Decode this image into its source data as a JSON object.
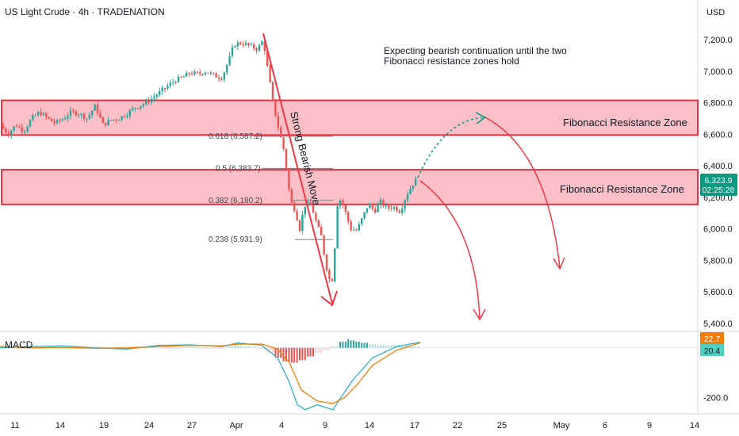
{
  "header": {
    "title": "US Light Crude · 4h · TRADENATION"
  },
  "currency": "USD",
  "price_badge": {
    "price": "6,323.9",
    "countdown": "02:25:28",
    "color": "#089981"
  },
  "macd_badges": [
    {
      "value": "22.7",
      "color": "#f57c00"
    },
    {
      "value": "20.4",
      "color": "#4dd0c0"
    }
  ],
  "macd_label": "MACD",
  "annotations": {
    "note_line1": "Expecting bearish continuation until the two",
    "note_line2": "Fibonacci resistance zones hold",
    "move_label": "Strong Bearish Move",
    "zone_upper_label": "Fibonacci Resistance Zone",
    "zone_lower_label": "Fibonacci Resistance Zone"
  },
  "colors": {
    "up": "#26a69a",
    "down": "#ef5350",
    "zone_fill": "#f9b4bd",
    "zone_border": "#e8323f",
    "arrow": "#f23645",
    "dotted": "#089981",
    "macd": "#2ab3c9",
    "signal": "#f57c00"
  },
  "chart_data": {
    "type": "candlestick",
    "price_axis": {
      "range": [
        5300,
        7500
      ],
      "ticks": [
        "7,200.0",
        "7,000.0",
        "6,800.0",
        "6,600.0",
        "6,400.0",
        "6,200.0",
        "6,000.0",
        "5,800.0",
        "5,600.0",
        "5,400.0"
      ],
      "tick_values": [
        7200,
        7000,
        6800,
        6600,
        6400,
        6200,
        6000,
        5800,
        5600,
        5400
      ]
    },
    "time_axis": {
      "ticks": [
        "11",
        "14",
        "19",
        "24",
        "27",
        "Apr",
        "4",
        "9",
        "14",
        "17",
        "22",
        "25",
        "May",
        "6",
        "9",
        "14"
      ]
    },
    "macd_axis": {
      "ticks": [
        "-200.0"
      ],
      "tick_values": [
        -200
      ],
      "range": [
        -260,
        60
      ]
    },
    "fibonacci": [
      {
        "label": "0.618 (6,587.2)",
        "value": 6587.2
      },
      {
        "label": "0.5 (6,383.7)",
        "value": 6383.7
      },
      {
        "label": "0.382 (6,180.2)",
        "value": 6180.2
      },
      {
        "label": "0.238 (5,931.9)",
        "value": 5931.9
      }
    ],
    "zones": [
      {
        "name": "Fibonacci Resistance Zone",
        "low": 6595,
        "high": 6815
      },
      {
        "name": "Fibonacci Resistance Zone",
        "low": 6155,
        "high": 6375
      }
    ],
    "last_price": 6323.9,
    "close_path": [
      [
        0,
        6660
      ],
      [
        10,
        6600
      ],
      [
        20,
        6660
      ],
      [
        30,
        6620
      ],
      [
        40,
        6700
      ],
      [
        50,
        6740
      ],
      [
        60,
        6700
      ],
      [
        70,
        6670
      ],
      [
        80,
        6700
      ],
      [
        90,
        6740
      ],
      [
        100,
        6730
      ],
      [
        110,
        6700
      ],
      [
        120,
        6780
      ],
      [
        130,
        6660
      ],
      [
        140,
        6690
      ],
      [
        150,
        6700
      ],
      [
        160,
        6730
      ],
      [
        170,
        6770
      ],
      [
        180,
        6790
      ],
      [
        190,
        6820
      ],
      [
        200,
        6860
      ],
      [
        210,
        6900
      ],
      [
        220,
        6940
      ],
      [
        230,
        6960
      ],
      [
        240,
        6990
      ],
      [
        250,
        6980
      ],
      [
        260,
        7000
      ],
      [
        270,
        6970
      ],
      [
        280,
        6960
      ],
      [
        290,
        7090
      ],
      [
        295,
        7170
      ],
      [
        305,
        7180
      ],
      [
        315,
        7160
      ],
      [
        325,
        7140
      ],
      [
        332,
        7200
      ],
      [
        338,
        7000
      ],
      [
        345,
        6780
      ],
      [
        352,
        6620
      ],
      [
        358,
        6500
      ],
      [
        362,
        6350
      ],
      [
        366,
        6180
      ],
      [
        372,
        6120
      ],
      [
        378,
        6000
      ],
      [
        384,
        6150
      ],
      [
        392,
        6160
      ],
      [
        400,
        6020
      ],
      [
        405,
        5960
      ],
      [
        410,
        5800
      ],
      [
        415,
        5680
      ],
      [
        420,
        5680
      ],
      [
        425,
        6150
      ],
      [
        430,
        6190
      ],
      [
        436,
        6100
      ],
      [
        442,
        6000
      ],
      [
        450,
        5990
      ],
      [
        458,
        6080
      ],
      [
        465,
        6160
      ],
      [
        472,
        6110
      ],
      [
        480,
        6170
      ],
      [
        488,
        6130
      ],
      [
        496,
        6140
      ],
      [
        505,
        6110
      ],
      [
        512,
        6210
      ],
      [
        520,
        6280
      ],
      [
        527,
        6324
      ]
    ],
    "macd_series": [
      {
        "name": "MACD",
        "points": [
          [
            0,
            0
          ],
          [
            40,
            5
          ],
          [
            80,
            8
          ],
          [
            120,
            0
          ],
          [
            160,
            -5
          ],
          [
            200,
            10
          ],
          [
            240,
            12
          ],
          [
            280,
            5
          ],
          [
            300,
            20
          ],
          [
            330,
            10
          ],
          [
            350,
            -40
          ],
          [
            365,
            -140
          ],
          [
            375,
            -230
          ],
          [
            385,
            -250
          ],
          [
            400,
            -230
          ],
          [
            420,
            -250
          ],
          [
            430,
            -200
          ],
          [
            445,
            -130
          ],
          [
            470,
            -40
          ],
          [
            500,
            5
          ],
          [
            530,
            22.7
          ]
        ]
      },
      {
        "name": "Signal",
        "points": [
          [
            0,
            5
          ],
          [
            40,
            0
          ],
          [
            80,
            2
          ],
          [
            120,
            -2
          ],
          [
            160,
            0
          ],
          [
            200,
            5
          ],
          [
            240,
            10
          ],
          [
            280,
            8
          ],
          [
            300,
            15
          ],
          [
            330,
            15
          ],
          [
            350,
            -5
          ],
          [
            365,
            -60
          ],
          [
            380,
            -170
          ],
          [
            400,
            -215
          ],
          [
            420,
            -225
          ],
          [
            435,
            -200
          ],
          [
            450,
            -150
          ],
          [
            470,
            -70
          ],
          [
            500,
            -10
          ],
          [
            530,
            20.4
          ]
        ]
      }
    ],
    "macd_hist": [
      [
        290,
        8
      ],
      [
        300,
        10
      ],
      [
        310,
        6
      ],
      [
        320,
        3
      ],
      [
        330,
        -5
      ],
      [
        340,
        -20
      ],
      [
        350,
        -40
      ],
      [
        360,
        -55
      ],
      [
        370,
        -60
      ],
      [
        380,
        -50
      ],
      [
        390,
        -35
      ],
      [
        400,
        -20
      ],
      [
        410,
        -10
      ],
      [
        420,
        5
      ],
      [
        430,
        25
      ],
      [
        435,
        35
      ],
      [
        440,
        30
      ],
      [
        450,
        25
      ],
      [
        460,
        20
      ],
      [
        470,
        15
      ],
      [
        480,
        12
      ],
      [
        490,
        10
      ],
      [
        500,
        12
      ],
      [
        510,
        8
      ],
      [
        520,
        6
      ],
      [
        530,
        4
      ]
    ]
  }
}
